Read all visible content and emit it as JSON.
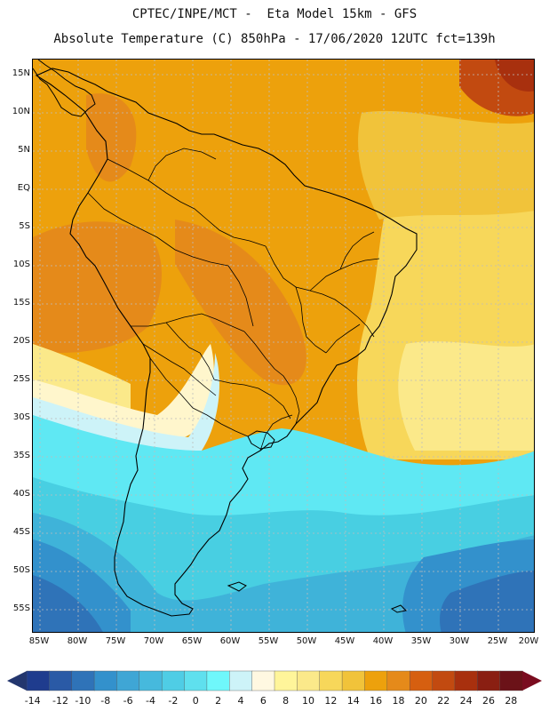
{
  "header": {
    "title_line1": "CPTEC/INPE/MCT -  Eta Model 15km - GFS",
    "title_line2": "Absolute Temperature (C) 850hPa - 17/06/2020 12UTC fct=139h"
  },
  "map": {
    "lat_labels": [
      "15N",
      "10N",
      "5N",
      "EQ",
      "5S",
      "10S",
      "15S",
      "20S",
      "25S",
      "30S",
      "35S",
      "40S",
      "45S",
      "50S",
      "55S"
    ],
    "lon_labels": [
      "85W",
      "80W",
      "75W",
      "70W",
      "65W",
      "60W",
      "55W",
      "50W",
      "45W",
      "40W",
      "35W",
      "30W",
      "25W",
      "20W"
    ],
    "colors": {
      "warm_background": "#eda10c",
      "orange_band": "#e58a1a",
      "hot_spot": "#c24a10",
      "light_yellow": "#f7d75a",
      "pale_yellow": "#fbe98a",
      "cream": "#fff6cc",
      "light_cyan": "#cdf3f8",
      "cyan": "#5fe8f3",
      "mid_cyan": "#48cfe2",
      "light_blue": "#3fb3d9",
      "blue": "#3391cc",
      "dark_blue": "#2f73b8",
      "coast": "#000000",
      "grid": "#bdbdbd"
    }
  },
  "colorbar": {
    "labels": [
      "-14",
      "-12",
      "-10",
      "-8",
      "-6",
      "-4",
      "-2",
      "0",
      "2",
      "4",
      "6",
      "8",
      "10",
      "12",
      "14",
      "16",
      "18",
      "20",
      "22",
      "24",
      "26",
      "28"
    ],
    "colors": [
      "#1f3c8e",
      "#2a5aa6",
      "#2f73b8",
      "#3391cc",
      "#3fa6d5",
      "#46b9dd",
      "#4fcde5",
      "#5fe0ee",
      "#6ff7fb",
      "#cdf3f8",
      "#fff8e1",
      "#fff59a",
      "#fbe98a",
      "#f7d75a",
      "#f1c33a",
      "#eda10c",
      "#e58a1a",
      "#d65f10",
      "#c24a10",
      "#a8300e",
      "#8a1f12",
      "#6b1218"
    ],
    "low_arrow_color": "#23366e",
    "high_arrow_color": "#7a0c1f"
  }
}
